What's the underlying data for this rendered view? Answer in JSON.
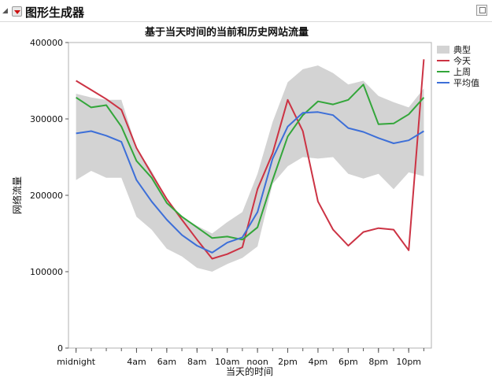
{
  "window": {
    "title": "图形生成器",
    "menu_icon": "red-triangle-menu-icon",
    "pin_icon": "pin-icon"
  },
  "chart_data": {
    "type": "line",
    "title": "基于当天时间的当前和历史网站流量",
    "xlabel": "当天的时间",
    "ylabel": "网络流量",
    "ylim": [
      0,
      400000
    ],
    "yticks": [
      0,
      100000,
      200000,
      300000,
      400000
    ],
    "ytick_labels": [
      "0",
      "100000",
      "200000",
      "300000",
      "400000"
    ],
    "xlim": [
      -0.5,
      23.5
    ],
    "xticks": [
      0,
      4,
      6,
      8,
      10,
      12,
      14,
      16,
      18,
      20,
      22
    ],
    "xtick_labels": [
      "midnight",
      "4am",
      "6am",
      "8am",
      "10am",
      "noon",
      "2pm",
      "4pm",
      "6pm",
      "8pm",
      "10pm"
    ],
    "x": [
      0,
      1,
      2,
      3,
      4,
      5,
      6,
      7,
      8,
      9,
      10,
      11,
      12,
      13,
      14,
      15,
      16,
      17,
      18,
      19,
      20,
      21,
      22,
      23
    ],
    "band": {
      "name": "典型",
      "color": "#d3d3d3",
      "lower": [
        220000,
        232000,
        223000,
        223000,
        172000,
        155000,
        130000,
        120000,
        105000,
        100000,
        110000,
        118000,
        133000,
        215000,
        238000,
        250000,
        248000,
        250000,
        228000,
        222000,
        228000,
        208000,
        230000,
        225000
      ],
      "upper": [
        333000,
        328000,
        325000,
        325000,
        262000,
        232000,
        195000,
        172000,
        160000,
        150000,
        165000,
        178000,
        228000,
        296000,
        348000,
        365000,
        370000,
        360000,
        345000,
        350000,
        330000,
        322000,
        315000,
        340000
      ]
    },
    "series": [
      {
        "name": "今天",
        "color": "#cc3344",
        "values": [
          350000,
          338000,
          326000,
          312000,
          262000,
          228000,
          195000,
          168000,
          142000,
          117000,
          123000,
          132000,
          208000,
          255000,
          325000,
          284000,
          192000,
          155000,
          134000,
          152000,
          157000,
          155000,
          128000,
          378000
        ]
      },
      {
        "name": "上周",
        "color": "#33a63a",
        "values": [
          328000,
          315000,
          318000,
          290000,
          245000,
          223000,
          190000,
          172000,
          158000,
          144000,
          146000,
          142000,
          158000,
          220000,
          277000,
          305000,
          323000,
          319000,
          325000,
          345000,
          293000,
          294000,
          306000,
          328000
        ]
      },
      {
        "name": "平均值",
        "color": "#3d6fd8",
        "values": [
          281000,
          284000,
          278000,
          270000,
          220000,
          192000,
          168000,
          148000,
          134000,
          125000,
          138000,
          145000,
          178000,
          248000,
          290000,
          308000,
          309000,
          305000,
          288000,
          283000,
          275000,
          268000,
          272000,
          284000
        ]
      }
    ],
    "legend": {
      "position": "right"
    },
    "grid": false
  }
}
